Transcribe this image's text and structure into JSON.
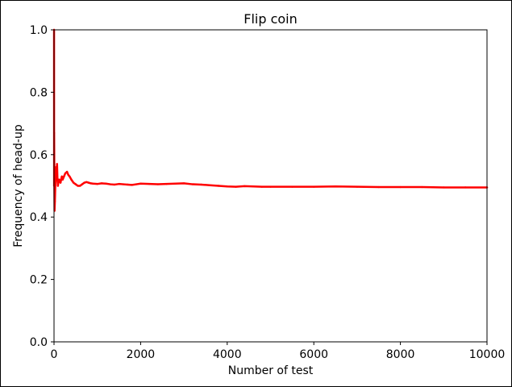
{
  "chart_data": {
    "type": "line",
    "title": "Flip coin",
    "xlabel": "Number of test",
    "ylabel": "Frequency of head-up",
    "xlim": [
      0,
      10000
    ],
    "ylim": [
      0.0,
      1.0
    ],
    "xticks": [
      0,
      2000,
      4000,
      6000,
      8000,
      10000
    ],
    "xtick_labels": [
      "0",
      "2000",
      "4000",
      "6000",
      "8000",
      "10000"
    ],
    "yticks": [
      0.0,
      0.2,
      0.4,
      0.6,
      0.8,
      1.0
    ],
    "ytick_labels": [
      "0.0",
      "0.2",
      "0.4",
      "0.6",
      "0.8",
      "1.0"
    ],
    "grid": false,
    "legend": "none",
    "series": [
      {
        "color": "#ff0000",
        "x": [
          1,
          2,
          3,
          5,
          8,
          12,
          20,
          30,
          40,
          50,
          60,
          70,
          80,
          90,
          100,
          120,
          150,
          180,
          200,
          230,
          260,
          300,
          330,
          360,
          400,
          450,
          500,
          550,
          600,
          650,
          700,
          750,
          800,
          850,
          900,
          1000,
          1100,
          1200,
          1300,
          1400,
          1500,
          1600,
          1700,
          1800,
          1900,
          2000,
          2200,
          2400,
          2600,
          2800,
          3000,
          3200,
          3400,
          3600,
          3800,
          4000,
          4200,
          4400,
          4600,
          4800,
          5000,
          5500,
          6000,
          6500,
          7000,
          7500,
          8000,
          8500,
          9000,
          9500,
          10000
        ],
        "y": [
          1.0,
          0.5,
          0.67,
          0.6,
          0.5,
          0.42,
          0.45,
          0.5,
          0.53,
          0.56,
          0.55,
          0.57,
          0.52,
          0.5,
          0.51,
          0.52,
          0.51,
          0.53,
          0.52,
          0.53,
          0.54,
          0.545,
          0.535,
          0.53,
          0.52,
          0.51,
          0.505,
          0.5,
          0.5,
          0.505,
          0.51,
          0.512,
          0.51,
          0.508,
          0.507,
          0.506,
          0.508,
          0.507,
          0.505,
          0.504,
          0.506,
          0.505,
          0.504,
          0.503,
          0.505,
          0.507,
          0.506,
          0.505,
          0.506,
          0.507,
          0.508,
          0.505,
          0.504,
          0.502,
          0.5,
          0.498,
          0.497,
          0.499,
          0.498,
          0.497,
          0.497,
          0.497,
          0.497,
          0.498,
          0.497,
          0.496,
          0.496,
          0.496,
          0.495,
          0.495,
          0.495
        ]
      }
    ]
  }
}
